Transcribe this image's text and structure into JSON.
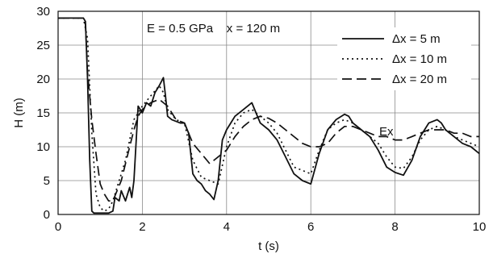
{
  "chart_data": {
    "type": "line",
    "xlabel": "t (s)",
    "ylabel": "H (m)",
    "xlim": [
      0,
      10
    ],
    "ylim": [
      0,
      30
    ],
    "xticks": [
      "0",
      "2",
      "4",
      "6",
      "8",
      "10"
    ],
    "yticks": [
      "0",
      "5",
      "10",
      "15",
      "20",
      "25",
      "30"
    ],
    "grid": true,
    "legend_position": "top-right",
    "annotations": [
      "E = 0.5 GPa    x = 120 m",
      "Ex"
    ],
    "series": [
      {
        "name": "Δx = 5 m",
        "style": "solid",
        "x": [
          0,
          0.6,
          0.65,
          0.7,
          0.75,
          0.8,
          0.85,
          0.9,
          1.2,
          1.3,
          1.35,
          1.45,
          1.5,
          1.6,
          1.7,
          1.75,
          1.8,
          1.9,
          2.0,
          2.1,
          2.2,
          2.3,
          2.4,
          2.5,
          2.55,
          2.6,
          2.7,
          2.9,
          3.0,
          3.1,
          3.2,
          3.3,
          3.4,
          3.5,
          3.6,
          3.7,
          3.8,
          3.9,
          4.0,
          4.1,
          4.2,
          4.4,
          4.6,
          4.7,
          4.8,
          5.0,
          5.2,
          5.4,
          5.6,
          5.8,
          6.0,
          6.2,
          6.4,
          6.6,
          6.8,
          6.9,
          7.0,
          7.2,
          7.4,
          7.6,
          7.8,
          8.0,
          8.2,
          8.4,
          8.6,
          8.8,
          9.0,
          9.1,
          9.2,
          9.4,
          9.6,
          9.8,
          10.0
        ],
        "y": [
          29.0,
          29.0,
          28.5,
          20.0,
          8.0,
          0.5,
          0.2,
          0.2,
          0.2,
          0.5,
          2.5,
          2.0,
          3.5,
          2.0,
          4.0,
          2.5,
          5.0,
          16.0,
          15.0,
          16.5,
          16.0,
          18.0,
          19.0,
          20.2,
          17.5,
          14.5,
          14.0,
          13.5,
          13.5,
          12.0,
          6.0,
          5.0,
          4.5,
          3.5,
          3.0,
          2.2,
          5.0,
          11.0,
          12.5,
          13.5,
          14.5,
          15.5,
          16.5,
          15.0,
          13.5,
          12.5,
          11.0,
          8.5,
          6.0,
          5.0,
          4.5,
          9.0,
          12.5,
          14.0,
          14.8,
          14.5,
          13.5,
          12.5,
          11.5,
          9.5,
          7.0,
          6.2,
          5.8,
          8.0,
          11.5,
          13.5,
          14.0,
          13.5,
          12.5,
          11.5,
          10.5,
          10.0,
          9.0
        ]
      },
      {
        "name": "Δx = 10 m",
        "style": "dotted",
        "x": [
          0,
          0.6,
          0.7,
          0.8,
          0.9,
          1.0,
          1.1,
          1.2,
          1.3,
          1.4,
          1.5,
          1.6,
          1.7,
          1.8,
          1.9,
          2.0,
          2.2,
          2.4,
          2.5,
          2.6,
          2.8,
          3.0,
          3.2,
          3.4,
          3.6,
          3.8,
          4.0,
          4.2,
          4.4,
          4.6,
          4.8,
          5.0,
          5.2,
          5.4,
          5.6,
          5.8,
          6.0,
          6.2,
          6.4,
          6.6,
          6.8,
          7.0,
          7.2,
          7.4,
          7.6,
          7.8,
          8.0,
          8.2,
          8.4,
          8.6,
          8.8,
          9.0,
          9.2,
          9.4,
          9.6,
          9.8,
          10.0
        ],
        "y": [
          29.0,
          29.0,
          26.0,
          12.0,
          3.0,
          1.0,
          0.5,
          0.8,
          2.0,
          4.0,
          6.0,
          8.0,
          11.0,
          14.0,
          15.0,
          16.0,
          17.5,
          19.0,
          18.0,
          15.5,
          14.0,
          13.5,
          8.0,
          5.5,
          5.0,
          4.5,
          10.0,
          13.5,
          15.0,
          15.5,
          14.5,
          13.5,
          12.0,
          9.5,
          7.0,
          6.5,
          6.0,
          9.5,
          12.5,
          13.5,
          14.0,
          13.5,
          12.5,
          11.5,
          10.5,
          8.5,
          7.0,
          6.8,
          8.5,
          11.0,
          12.5,
          13.0,
          12.5,
          11.5,
          11.0,
          10.5,
          10.0
        ]
      },
      {
        "name": "Δx = 20 m",
        "style": "dashed",
        "x": [
          0,
          0.6,
          0.65,
          0.7,
          0.8,
          0.9,
          1.0,
          1.1,
          1.2,
          1.3,
          1.4,
          1.5,
          1.6,
          1.7,
          1.8,
          1.9,
          2.0,
          2.2,
          2.4,
          2.6,
          2.8,
          3.0,
          3.2,
          3.4,
          3.6,
          3.8,
          4.0,
          4.2,
          4.4,
          4.6,
          4.8,
          5.0,
          5.2,
          5.4,
          5.6,
          5.8,
          6.0,
          6.2,
          6.4,
          6.6,
          6.8,
          7.0,
          7.2,
          7.4,
          7.6,
          7.8,
          8.0,
          8.2,
          8.4,
          8.6,
          8.8,
          9.0,
          9.2,
          9.4,
          9.6,
          9.8,
          10.0
        ],
        "y": [
          29.0,
          29.0,
          28.0,
          21.0,
          14.0,
          9.0,
          4.5,
          3.0,
          2.0,
          2.0,
          3.5,
          5.0,
          7.5,
          10.0,
          12.5,
          14.5,
          15.5,
          16.5,
          17.0,
          16.0,
          14.0,
          13.5,
          10.5,
          9.0,
          7.5,
          8.5,
          9.5,
          11.5,
          13.0,
          14.0,
          14.5,
          14.2,
          13.5,
          12.5,
          11.5,
          10.5,
          10.0,
          10.0,
          10.5,
          12.0,
          13.0,
          13.0,
          12.5,
          12.0,
          11.5,
          11.5,
          11.0,
          11.0,
          11.5,
          12.0,
          12.5,
          12.5,
          12.5,
          12.0,
          12.0,
          11.5,
          11.5
        ]
      }
    ]
  }
}
